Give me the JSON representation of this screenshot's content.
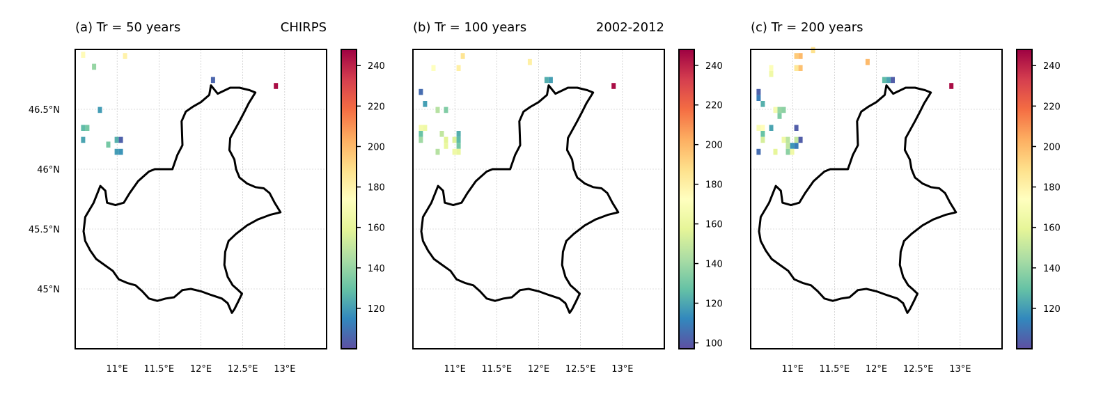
{
  "chart_data": [
    {
      "type": "heatmap",
      "title_left": "(a) Tr = 50 years",
      "title_right": "CHIRPS",
      "xticks": [
        "11°E",
        "11.5°E",
        "12°E",
        "12.5°E",
        "13°E"
      ],
      "yticks": [
        "46.5°N",
        "46°N",
        "45.5°N",
        "45°N"
      ],
      "xlim": [
        10.5,
        13.5
      ],
      "ylim": [
        44.5,
        47.0
      ],
      "colorbar": {
        "colormap": "Spectral_r",
        "range": [
          100,
          248
        ],
        "ticks": [
          120,
          140,
          160,
          180,
          200,
          220,
          240
        ]
      },
      "cells": [
        {
          "lon": 10.57,
          "lat": 46.93,
          "value": 176
        },
        {
          "lon": 10.7,
          "lat": 46.83,
          "value": 140
        },
        {
          "lon": 10.77,
          "lat": 46.47,
          "value": 120
        },
        {
          "lon": 10.62,
          "lat": 46.32,
          "value": 133
        },
        {
          "lon": 10.57,
          "lat": 46.32,
          "value": 128
        },
        {
          "lon": 10.57,
          "lat": 46.22,
          "value": 122
        },
        {
          "lon": 10.87,
          "lat": 46.18,
          "value": 133
        },
        {
          "lon": 10.97,
          "lat": 46.22,
          "value": 125
        },
        {
          "lon": 11.02,
          "lat": 46.22,
          "value": 105
        },
        {
          "lon": 10.97,
          "lat": 46.12,
          "value": 120
        },
        {
          "lon": 11.02,
          "lat": 46.12,
          "value": 118
        },
        {
          "lon": 11.07,
          "lat": 46.92,
          "value": 180
        },
        {
          "lon": 12.12,
          "lat": 46.72,
          "value": 106
        },
        {
          "lon": 12.87,
          "lat": 46.67,
          "value": 245
        }
      ]
    },
    {
      "type": "heatmap",
      "title_left": "(b) Tr = 100 years",
      "title_right": "2002-2012",
      "xticks": [
        "11°E",
        "11.5°E",
        "12°E",
        "12.5°E",
        "13°E"
      ],
      "yticks": [
        "46.5°N",
        "46°N",
        "45.5°N",
        "45°N"
      ],
      "xlim": [
        10.5,
        13.5
      ],
      "ylim": [
        44.5,
        47.0
      ],
      "colorbar": {
        "colormap": "Spectral_r",
        "range": [
          97,
          248
        ],
        "ticks": [
          100,
          120,
          140,
          160,
          180,
          200,
          220,
          240
        ]
      },
      "cells": [
        {
          "lon": 10.57,
          "lat": 46.62,
          "value": 105
        },
        {
          "lon": 10.62,
          "lat": 46.52,
          "value": 118
        },
        {
          "lon": 10.72,
          "lat": 46.82,
          "value": 172
        },
        {
          "lon": 10.77,
          "lat": 46.47,
          "value": 145
        },
        {
          "lon": 10.87,
          "lat": 46.47,
          "value": 133
        },
        {
          "lon": 10.57,
          "lat": 46.32,
          "value": 165
        },
        {
          "lon": 10.62,
          "lat": 46.32,
          "value": 163
        },
        {
          "lon": 10.57,
          "lat": 46.27,
          "value": 128
        },
        {
          "lon": 10.57,
          "lat": 46.22,
          "value": 140
        },
        {
          "lon": 10.82,
          "lat": 46.27,
          "value": 148
        },
        {
          "lon": 10.87,
          "lat": 46.22,
          "value": 157
        },
        {
          "lon": 10.87,
          "lat": 46.17,
          "value": 160
        },
        {
          "lon": 10.77,
          "lat": 46.12,
          "value": 145
        },
        {
          "lon": 10.97,
          "lat": 46.22,
          "value": 155
        },
        {
          "lon": 11.02,
          "lat": 46.27,
          "value": 122
        },
        {
          "lon": 11.02,
          "lat": 46.22,
          "value": 125
        },
        {
          "lon": 11.02,
          "lat": 46.17,
          "value": 130
        },
        {
          "lon": 10.97,
          "lat": 46.12,
          "value": 163
        },
        {
          "lon": 11.02,
          "lat": 46.12,
          "value": 160
        },
        {
          "lon": 11.02,
          "lat": 46.82,
          "value": 180
        },
        {
          "lon": 11.07,
          "lat": 46.92,
          "value": 185
        },
        {
          "lon": 11.87,
          "lat": 46.87,
          "value": 180
        },
        {
          "lon": 12.07,
          "lat": 46.72,
          "value": 122
        },
        {
          "lon": 12.12,
          "lat": 46.72,
          "value": 118
        },
        {
          "lon": 12.87,
          "lat": 46.67,
          "value": 245
        }
      ]
    },
    {
      "type": "heatmap",
      "title_left": "(c) Tr = 200 years",
      "title_right": "",
      "xticks": [
        "11°E",
        "11.5°E",
        "12°E",
        "12.5°E",
        "13°E"
      ],
      "yticks": [
        "46.5°N",
        "46°N",
        "45.5°N",
        "45°N"
      ],
      "xlim": [
        10.5,
        13.5
      ],
      "ylim": [
        44.5,
        47.0
      ],
      "colorbar": {
        "colormap": "Spectral_r",
        "range": [
          100,
          248
        ],
        "ticks": [
          120,
          140,
          160,
          180,
          200,
          220,
          240
        ]
      },
      "cells": [
        {
          "lon": 10.57,
          "lat": 46.62,
          "value": 105
        },
        {
          "lon": 10.57,
          "lat": 46.57,
          "value": 112
        },
        {
          "lon": 10.62,
          "lat": 46.52,
          "value": 125
        },
        {
          "lon": 10.57,
          "lat": 46.12,
          "value": 108
        },
        {
          "lon": 10.72,
          "lat": 46.82,
          "value": 172
        },
        {
          "lon": 10.72,
          "lat": 46.77,
          "value": 165
        },
        {
          "lon": 10.77,
          "lat": 46.47,
          "value": 168
        },
        {
          "lon": 10.82,
          "lat": 46.47,
          "value": 140
        },
        {
          "lon": 10.87,
          "lat": 46.47,
          "value": 138
        },
        {
          "lon": 10.82,
          "lat": 46.42,
          "value": 135
        },
        {
          "lon": 10.57,
          "lat": 46.32,
          "value": 170
        },
        {
          "lon": 10.62,
          "lat": 46.32,
          "value": 175
        },
        {
          "lon": 10.72,
          "lat": 46.32,
          "value": 122
        },
        {
          "lon": 10.62,
          "lat": 46.27,
          "value": 130
        },
        {
          "lon": 10.62,
          "lat": 46.22,
          "value": 155
        },
        {
          "lon": 10.77,
          "lat": 46.12,
          "value": 160
        },
        {
          "lon": 10.87,
          "lat": 46.22,
          "value": 165
        },
        {
          "lon": 10.92,
          "lat": 46.22,
          "value": 148
        },
        {
          "lon": 10.92,
          "lat": 46.17,
          "value": 150
        },
        {
          "lon": 10.97,
          "lat": 46.17,
          "value": 118
        },
        {
          "lon": 10.92,
          "lat": 46.12,
          "value": 138
        },
        {
          "lon": 10.97,
          "lat": 46.12,
          "value": 165
        },
        {
          "lon": 11.02,
          "lat": 46.32,
          "value": 104
        },
        {
          "lon": 11.02,
          "lat": 46.22,
          "value": 150
        },
        {
          "lon": 11.02,
          "lat": 46.17,
          "value": 112
        },
        {
          "lon": 11.07,
          "lat": 46.22,
          "value": 104
        },
        {
          "lon": 11.02,
          "lat": 46.82,
          "value": 185
        },
        {
          "lon": 11.07,
          "lat": 46.82,
          "value": 198
        },
        {
          "lon": 11.02,
          "lat": 46.92,
          "value": 195
        },
        {
          "lon": 11.07,
          "lat": 46.92,
          "value": 200
        },
        {
          "lon": 11.22,
          "lat": 46.97,
          "value": 188
        },
        {
          "lon": 11.87,
          "lat": 46.87,
          "value": 200
        },
        {
          "lon": 12.07,
          "lat": 46.72,
          "value": 128
        },
        {
          "lon": 12.12,
          "lat": 46.72,
          "value": 122
        },
        {
          "lon": 12.17,
          "lat": 46.72,
          "value": 104
        },
        {
          "lon": 12.87,
          "lat": 46.67,
          "value": 245
        }
      ]
    }
  ]
}
